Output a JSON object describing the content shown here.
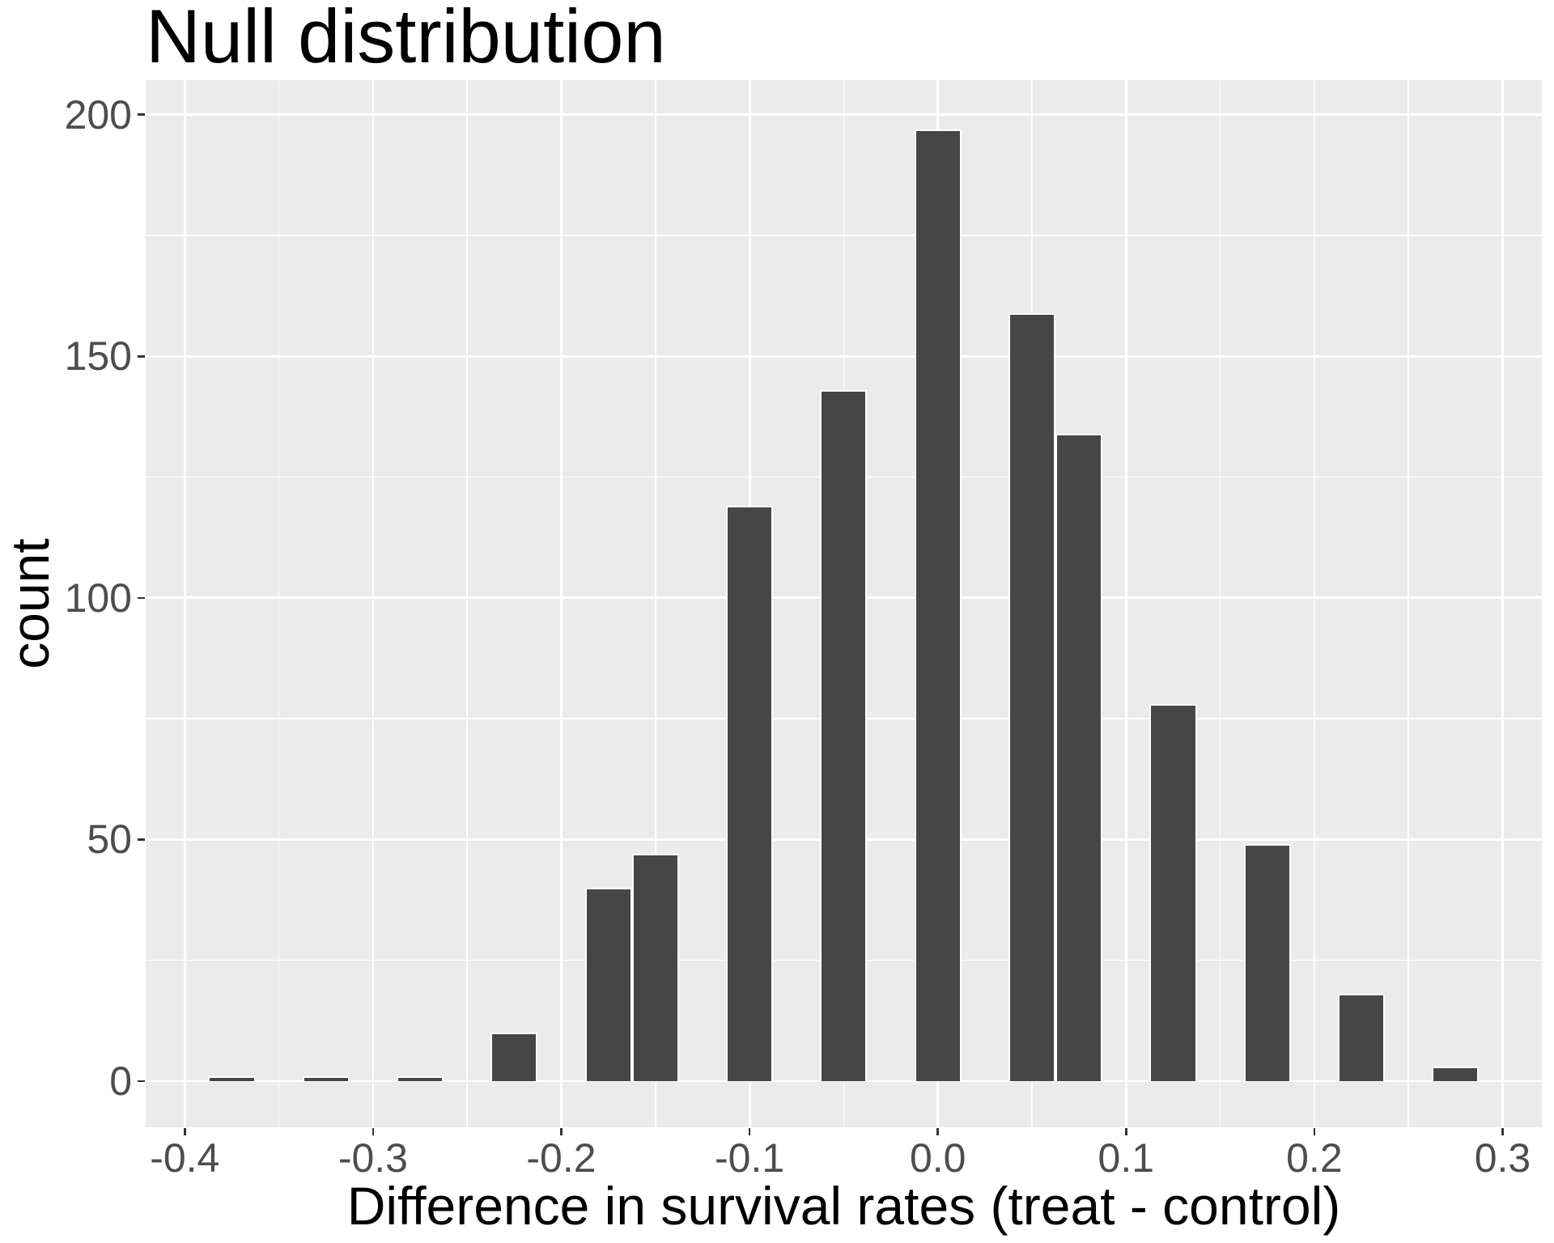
{
  "title": "Null distribution",
  "axes": {
    "x": {
      "title": "Difference in survival rates (treat - control)",
      "ticks": [
        {
          "value": -0.4,
          "label": "-0.4"
        },
        {
          "value": -0.3,
          "label": "-0.3"
        },
        {
          "value": -0.2,
          "label": "-0.2"
        },
        {
          "value": -0.1,
          "label": "-0.1"
        },
        {
          "value": 0.0,
          "label": "0.0"
        },
        {
          "value": 0.1,
          "label": "0.1"
        },
        {
          "value": 0.2,
          "label": "0.2"
        },
        {
          "value": 0.3,
          "label": "0.3"
        }
      ],
      "minor_ticks": [
        -0.35,
        -0.25,
        -0.15,
        -0.05,
        0.05,
        0.15,
        0.25
      ]
    },
    "y": {
      "title": "count",
      "ticks": [
        {
          "value": 0,
          "label": "0"
        },
        {
          "value": 50,
          "label": "50"
        },
        {
          "value": 100,
          "label": "100"
        },
        {
          "value": 150,
          "label": "150"
        },
        {
          "value": 200,
          "label": "200"
        }
      ],
      "minor_ticks": [
        25,
        75,
        125,
        175
      ]
    }
  },
  "chart_data": {
    "type": "bar",
    "subtype": "histogram",
    "title": "Null distribution",
    "xlabel": "Difference in survival rates (treat - control)",
    "ylabel": "count",
    "binwidth": 0.025,
    "bins": [
      {
        "center": -0.375,
        "count": 1
      },
      {
        "center": -0.325,
        "count": 1
      },
      {
        "center": -0.275,
        "count": 1
      },
      {
        "center": -0.225,
        "count": 10
      },
      {
        "center": -0.175,
        "count": 40
      },
      {
        "center": -0.15,
        "count": 47
      },
      {
        "center": -0.1,
        "count": 119
      },
      {
        "center": -0.05,
        "count": 143
      },
      {
        "center": 0.0,
        "count": 197
      },
      {
        "center": 0.05,
        "count": 159
      },
      {
        "center": 0.075,
        "count": 134
      },
      {
        "center": 0.125,
        "count": 78
      },
      {
        "center": 0.175,
        "count": 49
      },
      {
        "center": 0.225,
        "count": 18
      },
      {
        "center": 0.275,
        "count": 3
      }
    ],
    "total_count": 1000,
    "xlim": [
      -0.42077,
      0.32085
    ],
    "ylim": [
      -9.55,
      207.15
    ],
    "grid": true,
    "legend": false
  },
  "colors": {
    "bar_fill": "#464646",
    "bar_stroke": "#ffffff",
    "panel_bg": "#ebebeb",
    "grid": "#ffffff",
    "tick_mark": "#333333",
    "tick_label": "#4d4d4d",
    "title_text": "#000000",
    "page_bg": "#ffffff"
  }
}
